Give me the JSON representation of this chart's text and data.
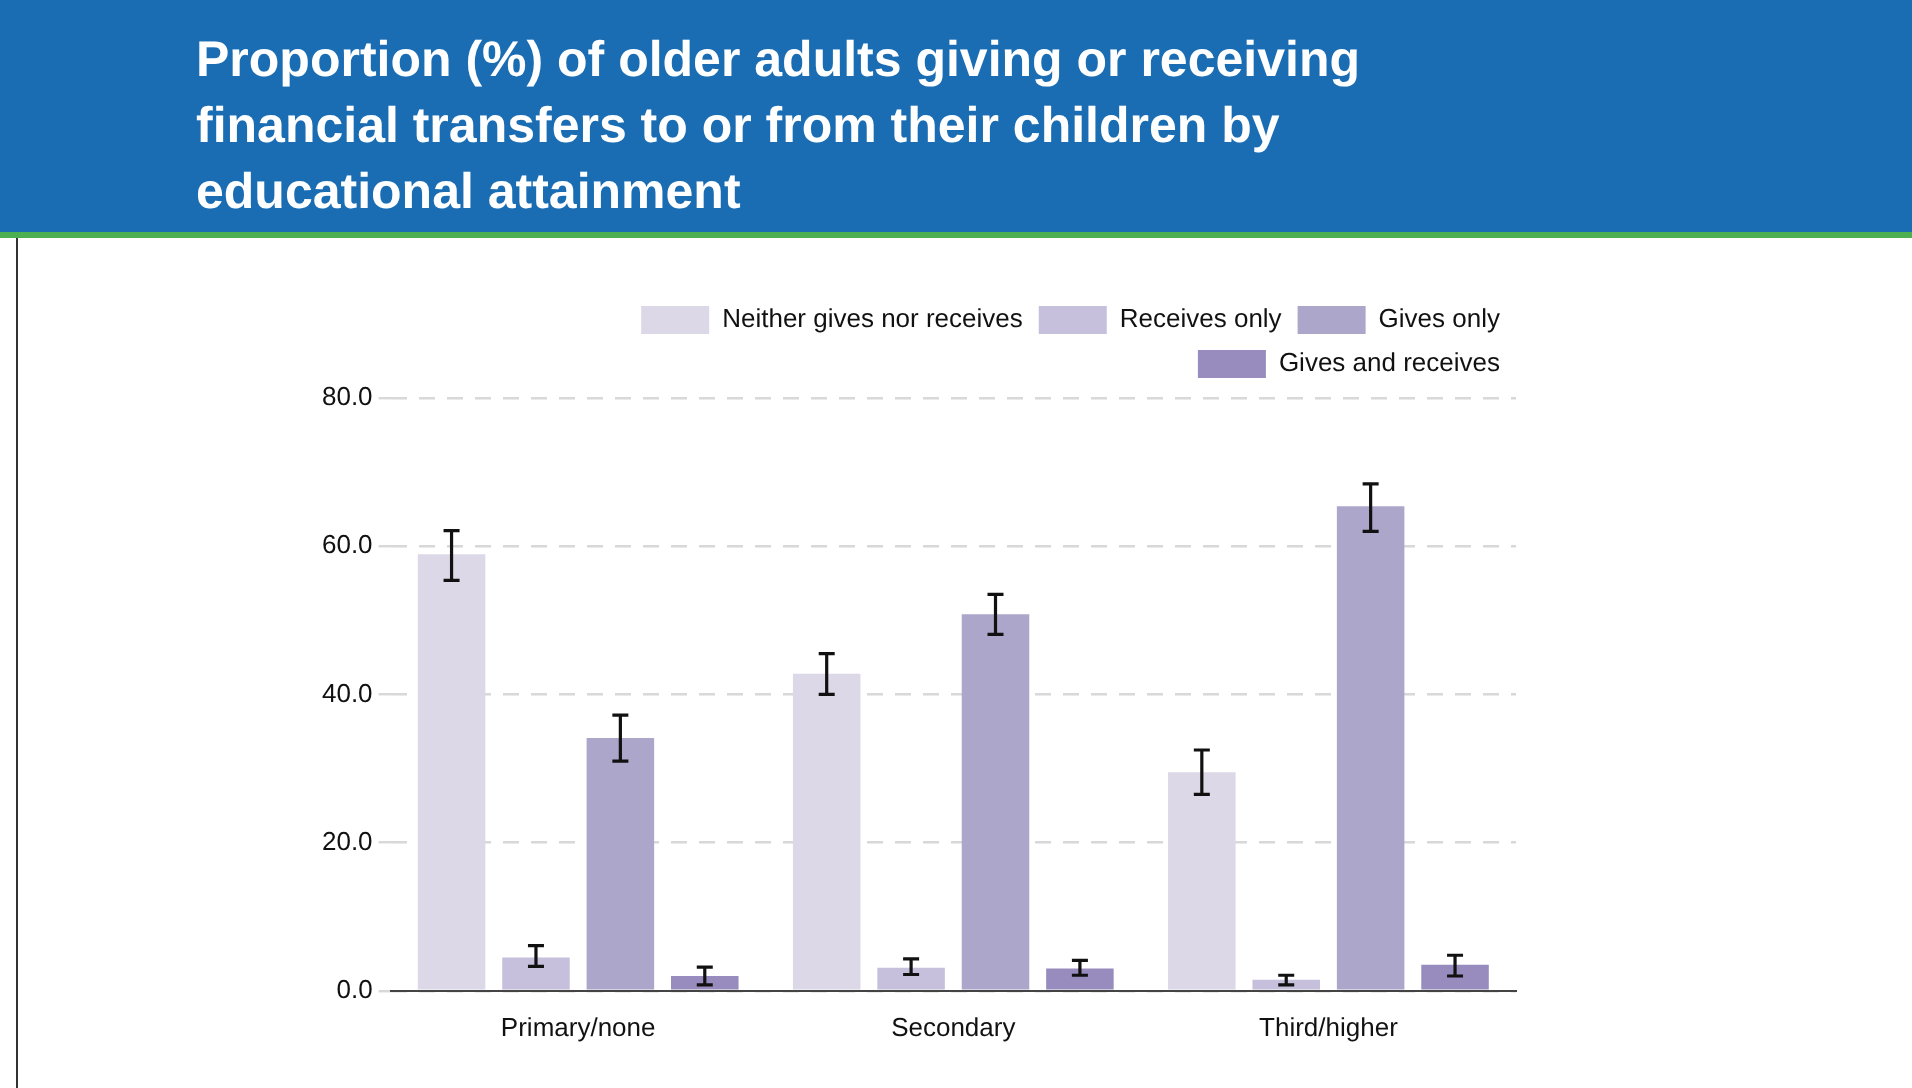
{
  "chart_data": {
    "type": "bar",
    "title": "Proportion (%) of older adults giving or receiving financial transfers to or from their children by educational attainment",
    "categories": [
      "Primary/none",
      "Secondary",
      "Third/higher"
    ],
    "series": [
      {
        "name": "Neither gives nor receives",
        "color": "#dcd8e8",
        "values": [
          58.9,
          42.8,
          29.5
        ],
        "errors": [
          [
            55.4,
            62.1
          ],
          [
            40.0,
            45.5
          ],
          [
            26.5,
            32.5
          ]
        ]
      },
      {
        "name": "Receives only",
        "color": "#c6c0dc",
        "values": [
          4.5,
          3.1,
          1.5
        ],
        "errors": [
          [
            3.3,
            6.1
          ],
          [
            2.2,
            4.3
          ],
          [
            0.8,
            2.1
          ]
        ]
      },
      {
        "name": "Gives only",
        "color": "#aca6cb",
        "values": [
          34.1,
          50.8,
          65.4
        ],
        "errors": [
          [
            31.0,
            37.2
          ],
          [
            48.1,
            53.5
          ],
          [
            62.0,
            68.4
          ]
        ]
      },
      {
        "name": "Gives and receives",
        "color": "#978cbd",
        "values": [
          2.0,
          3.0,
          3.5
        ],
        "errors": [
          [
            0.8,
            3.2
          ],
          [
            2.1,
            4.1
          ],
          [
            2.0,
            4.8
          ]
        ]
      }
    ],
    "ylim": [
      0,
      80
    ],
    "yticks": [
      {
        "value": 0,
        "label": "0.0"
      },
      {
        "value": 20,
        "label": "20.0"
      },
      {
        "value": 40,
        "label": "40.0"
      },
      {
        "value": 60,
        "label": "60.0"
      },
      {
        "value": 80,
        "label": "80.0"
      }
    ],
    "grid": "y",
    "legend": "top right"
  }
}
